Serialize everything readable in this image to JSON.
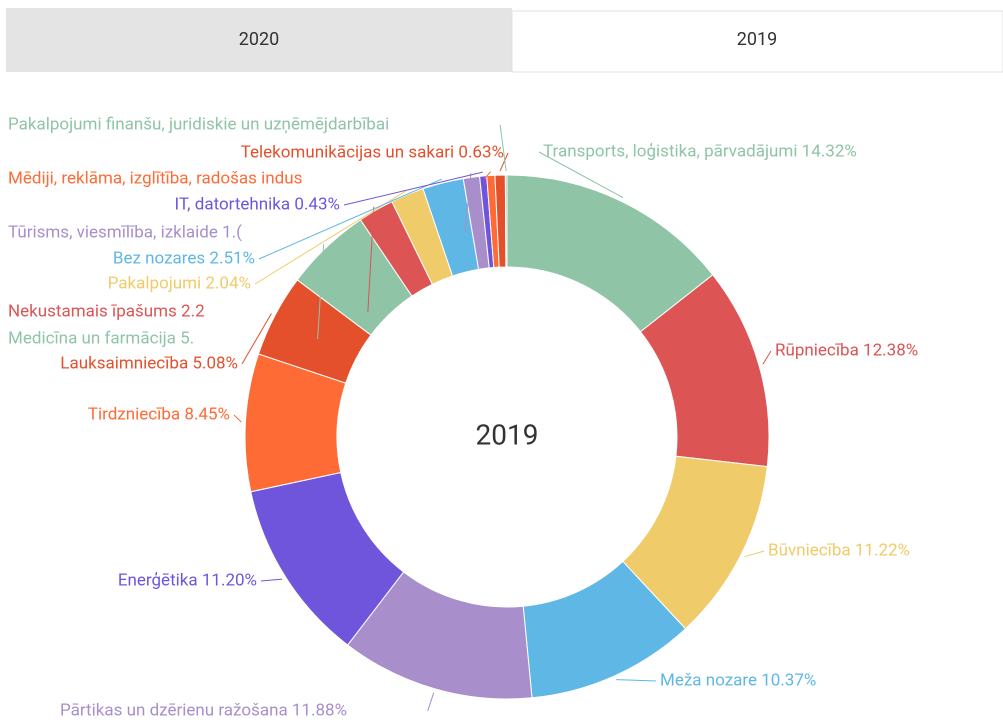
{
  "tabs": [
    "2020",
    "2019"
  ],
  "chart_data": {
    "type": "pie",
    "title": "2019",
    "labels": [
      "Transports, loģistika, pārvadājumi 14.32%",
      "Rūpniecība 12.38%",
      "Būvniecība 11.22%",
      "Meža nozare 10.37%",
      "Pārtikas un dzērienu ražošana 11.88%",
      "Enerģētika 11.20%",
      "Tirdzniecība 8.45%",
      "Lauksaimniecība 5.08%",
      "Medicīna un farmācija 5.",
      "Nekustamais īpašums 2.2",
      "Pakalpojumi 2.04%",
      "Bez nozares 2.51%",
      "Tūrisms, viesmīlība, izklaide 1.(",
      "IT, datortehnika 0.43%",
      "Mēdiji, reklāma, izglītība, radošas indus",
      "Telekomunikācijas un sakari 0.63%",
      "Pakalpojumi finanšu, juridiskie un uzņēmējdarbībai"
    ],
    "values": [
      14.32,
      12.38,
      11.22,
      10.37,
      11.88,
      11.2,
      8.45,
      5.08,
      5.3,
      2.2,
      2.04,
      2.51,
      1.0,
      0.43,
      0.5,
      0.63,
      0.1
    ],
    "colors": [
      "#8fc4a6",
      "#dc5454",
      "#f0cb69",
      "#5fb7e5",
      "#a88fcb",
      "#6f55dc",
      "#fe6b35",
      "#e4502b",
      "#8fc4a6",
      "#dc5454",
      "#f0cb69",
      "#5fb7e5",
      "#a88fcb",
      "#6f55dc",
      "#fe6b35",
      "#e4502b",
      "#8fc4a6"
    ],
    "donut": true
  }
}
